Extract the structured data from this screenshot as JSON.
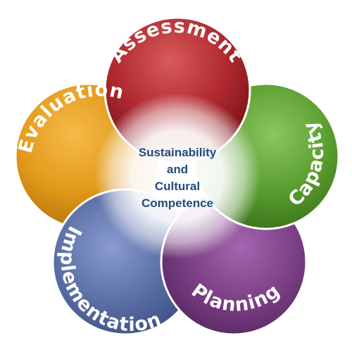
{
  "diagram": {
    "center_lines": [
      "Sustainability",
      "and",
      "Cultural",
      "Competence"
    ],
    "petals": [
      {
        "key": "assessment",
        "label": "Assessment",
        "color": "#b02a30"
      },
      {
        "key": "capacity",
        "label": "Capacity",
        "color": "#5a9e2f"
      },
      {
        "key": "planning",
        "label": "Planning",
        "color": "#7a3f85"
      },
      {
        "key": "implementation",
        "label": "Implementation",
        "color": "#5a6fa6"
      },
      {
        "key": "evaluation",
        "label": "Evaluation",
        "color": "#e39a1a"
      }
    ],
    "center_color": "#1f4d7a"
  }
}
